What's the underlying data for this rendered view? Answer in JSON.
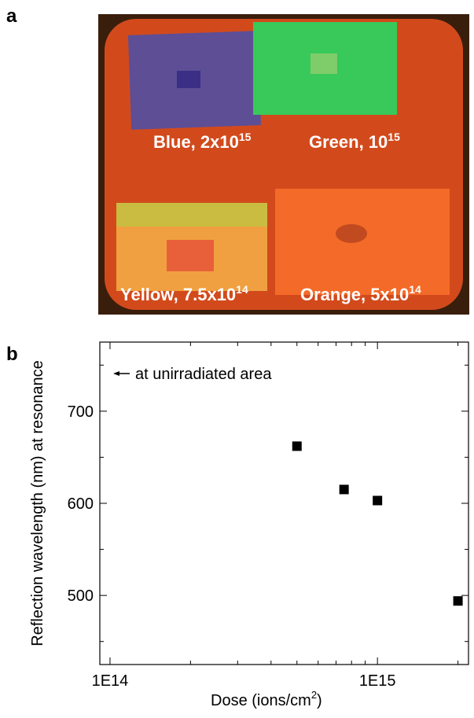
{
  "panel_a": {
    "label": "a",
    "photo_labels": [
      {
        "text": "Blue, 2x10",
        "sup": "15"
      },
      {
        "text": "Green, 10",
        "sup": "15"
      },
      {
        "text": "Yellow, 7.5x10",
        "sup": "14"
      },
      {
        "text": "Orange, 5x10",
        "sup": "14"
      }
    ]
  },
  "chart_data": {
    "type": "scatter",
    "panel_label": "b",
    "x_label": "Dose (ions/cm",
    "x_label_sup": "2",
    "x_label_end": ")",
    "y_label": "Reflection wavelength (nm) at resonance",
    "annotation": "at unirradiated area",
    "log_x": true,
    "x": [
      500000000000000,
      750000000000000,
      1000000000000000,
      2000000000000000
    ],
    "values": [
      662,
      615,
      603,
      494
    ],
    "color": "#000000",
    "xlim": [
      91600000000000,
      2190000000000000
    ],
    "ylim": [
      425,
      775
    ],
    "xticks": [
      {
        "value": 100000000000000,
        "label": "1E14"
      },
      {
        "value": 1000000000000000,
        "label": "1E15"
      }
    ],
    "xminorticks": [
      200000000000000,
      300000000000000,
      400000000000000,
      500000000000000,
      600000000000000,
      700000000000000,
      800000000000000,
      900000000000000,
      2000000000000000
    ],
    "yticks": [
      500,
      600,
      700
    ],
    "yminorticks": [
      450,
      550,
      650,
      750
    ],
    "grid": false
  }
}
